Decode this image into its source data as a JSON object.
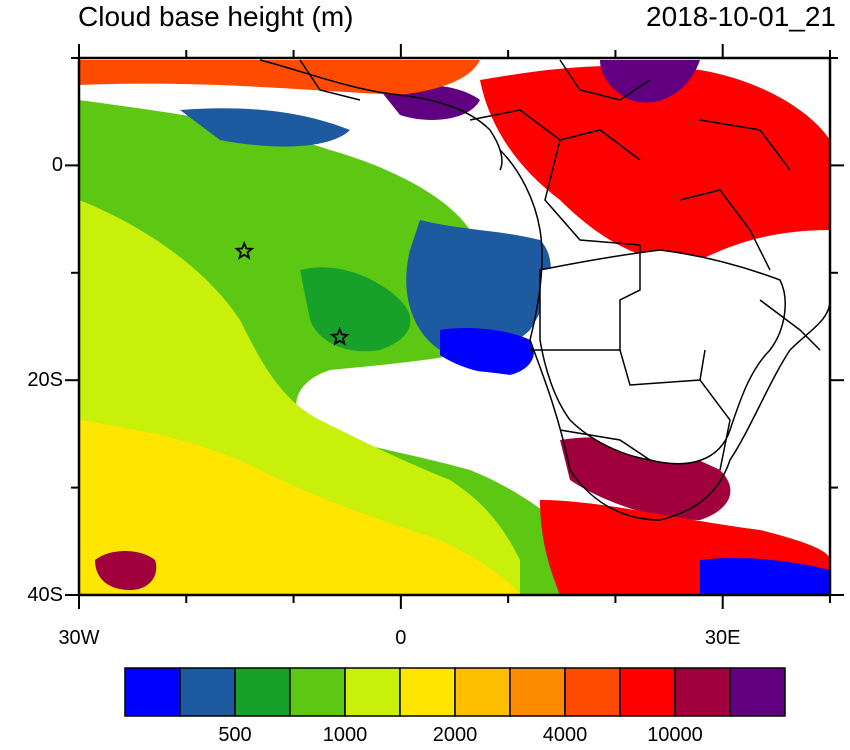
{
  "map": {
    "title": "Cloud base height (m)",
    "timestamp": "2018-10-01_21",
    "lat_labels": [
      "0",
      "20S",
      "40S"
    ],
    "lon_labels": [
      "30W",
      "0",
      "30E"
    ],
    "lat_values": [
      0,
      -20,
      -40
    ],
    "lon_values": [
      -30,
      0,
      30
    ],
    "extent": {
      "lon": [
        -30,
        40
      ],
      "lat": [
        -40,
        10
      ]
    },
    "star_markers": [
      {
        "lon": -14.6,
        "lat": -8.0
      },
      {
        "lon": -5.7,
        "lat": -16.0
      }
    ]
  },
  "colorbar": {
    "colors": [
      "#0000ff",
      "#1e5aa0",
      "#17a02a",
      "#5dc814",
      "#c8f00a",
      "#ffe600",
      "#ffbe00",
      "#ff8c00",
      "#ff4b00",
      "#ff0000",
      "#a0003c",
      "#600080"
    ],
    "labels": [
      "500",
      "1000",
      "2000",
      "4000",
      "10000"
    ]
  }
}
